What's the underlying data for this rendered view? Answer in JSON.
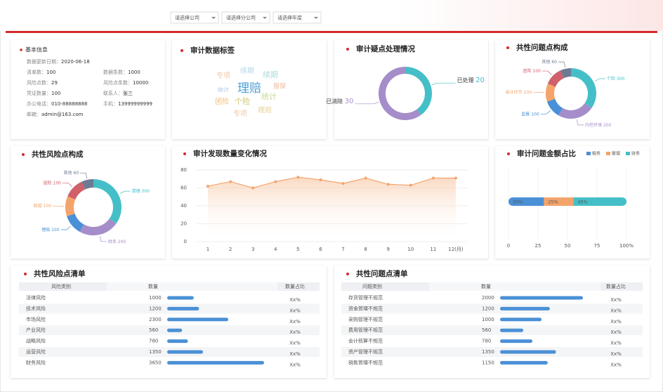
{
  "filters": [
    "请选择公司",
    "请选择分公司",
    "请选择年度"
  ],
  "basic_info": {
    "title": "基本信息",
    "fields": [
      {
        "label": "数据更新日期：",
        "value": "2020-06-18"
      },
      {
        "label": "清单数：",
        "value": "100"
      },
      {
        "label": "数据条数：",
        "value": "1000"
      },
      {
        "label": "风险点数：",
        "value": "29"
      },
      {
        "label": "风险点条数：",
        "value": "10000"
      },
      {
        "label": "凭证数量：",
        "value": "100"
      },
      {
        "label": "联系人：",
        "value": "张三"
      },
      {
        "label": "办公电话：",
        "value": "010-88888888"
      },
      {
        "label": "手机：",
        "value": "13999999999"
      },
      {
        "label": "邮箱：",
        "value": "admin@163.com"
      }
    ]
  },
  "tags": {
    "title": "审计数据标签",
    "words": [
      "专项",
      "续期",
      "续期",
      "统计",
      "理赔",
      "报保",
      "统计",
      "团险",
      "个险",
      "专项",
      "理赔"
    ]
  },
  "doubt_status": {
    "title": "审计疑点处理情况",
    "segments": [
      {
        "name": "已处理",
        "value": 20,
        "color": "#45bfc7"
      },
      {
        "name": "已消除",
        "value": 30,
        "color": "#a58dc9"
      }
    ]
  },
  "issue_composition": {
    "title": "共性问题点构成",
    "segments": [
      {
        "name": "个险",
        "value": 300,
        "color": "#45bfc7"
      },
      {
        "name": "内控环境",
        "value": 200,
        "color": "#a58dc9"
      },
      {
        "name": "监管",
        "value": 100,
        "color": "#4a90d6"
      },
      {
        "name": "审计环节",
        "value": 100,
        "color": "#f4a46a"
      },
      {
        "name": "团险",
        "value": 100,
        "color": "#d0606a"
      },
      {
        "name": "其他",
        "value": 60,
        "color": "#6e7a93"
      }
    ]
  },
  "risk_composition": {
    "title": "共性风险点构成",
    "segments": [
      {
        "name": "清理",
        "value": 300,
        "color": "#45bfc7"
      },
      {
        "name": "财务",
        "value": 200,
        "color": "#a58dc9"
      },
      {
        "name": "理赔",
        "value": 100,
        "color": "#4a90d6"
      },
      {
        "name": "赔偿",
        "value": 100,
        "color": "#f4a46a"
      },
      {
        "name": "团险",
        "value": 100,
        "color": "#d0606a"
      },
      {
        "name": "其他",
        "value": 60,
        "color": "#6e7a93"
      }
    ]
  },
  "trend": {
    "title": "审计发现数量变化情况",
    "categories": [
      "1",
      "2",
      "3",
      "4",
      "5",
      "6",
      "7",
      "8",
      "9",
      "10",
      "11",
      "12(月)"
    ],
    "values": [
      62,
      67,
      60,
      67,
      72,
      69,
      65,
      71,
      64,
      63,
      71,
      71
    ],
    "ylim": [
      0,
      80
    ],
    "yticks": [
      0,
      20,
      40,
      60,
      80
    ],
    "color": "#f4a46a"
  },
  "amount_share": {
    "title": "审计问题金额占比",
    "series": [
      {
        "name": "税务",
        "color": "#4a90d6",
        "values": [
          30
        ],
        "value_labels": [
          "30%"
        ]
      },
      {
        "name": "管理",
        "color": "#f4a46a",
        "values": [
          25
        ],
        "value_labels": [
          "25%"
        ]
      },
      {
        "name": "财务",
        "color": "#45bfc7",
        "values": [
          45
        ],
        "value_labels": [
          "45%"
        ]
      }
    ],
    "xlim": [
      0,
      100
    ],
    "xticks": [
      0,
      25,
      50,
      75,
      {
        "value": 100,
        "label": "100%"
      }
    ]
  },
  "risk_list": {
    "title": "共性风险点清单",
    "columns": [
      "风险类别",
      "数量",
      "数量占比"
    ],
    "rows": [
      [
        "法律风险",
        1000,
        "Xx%"
      ],
      [
        "技术风险",
        1200,
        "Xx%"
      ],
      [
        "市场风险",
        2300,
        "Xx%"
      ],
      [
        "产业风险",
        560,
        "Xx%"
      ],
      [
        "战略风险",
        780,
        "Xx%"
      ],
      [
        "运营风险",
        1350,
        "Xx%"
      ],
      [
        "财务风险",
        3650,
        "Xx%"
      ]
    ]
  },
  "issue_list": {
    "title": "共性问题点清单",
    "columns": [
      "问题类别",
      "数量",
      "数量占比"
    ],
    "rows": [
      [
        "存货管理不规范",
        2000,
        "Xx%"
      ],
      [
        "资金管理不规范",
        1200,
        "Xx%"
      ],
      [
        "采购管理不规范",
        1000,
        "Xx%"
      ],
      [
        "费用管理不规范",
        560,
        "Xx%"
      ],
      [
        "会计核算不规范",
        780,
        "Xx%"
      ],
      [
        "资产管理不规范",
        1350,
        "Xx%"
      ],
      [
        "销售管理不规范",
        1150,
        "Xx%"
      ]
    ]
  }
}
